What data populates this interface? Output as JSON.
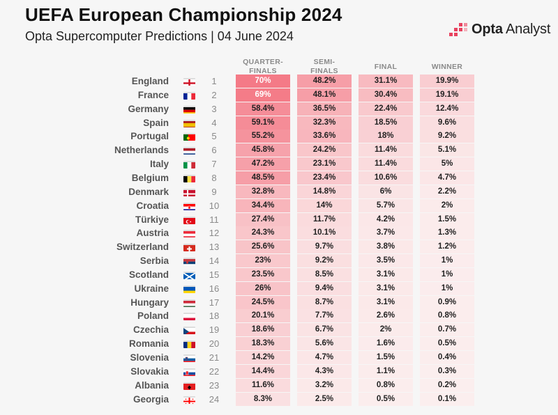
{
  "header": {
    "title": "UEFA European Championship 2024",
    "subtitle": "Opta Supercomputer Predictions | 04 June 2024",
    "brand_bold": "Opta",
    "brand_light": "Analyst"
  },
  "colors": {
    "background": "#f6f6f6",
    "accent": "#e8425f",
    "cell_max": "#f47a87",
    "cell_min": "#fbeeee"
  },
  "chart_data": {
    "type": "table",
    "title": "UEFA European Championship 2024",
    "subtitle": "Opta Supercomputer Predictions | 04 June 2024",
    "columns": [
      "QUARTER-\nFINALS",
      "SEMI-\nFINALS",
      "FINAL",
      "WINNER"
    ],
    "rows": [
      {
        "country": "England",
        "flag": "england-flag-icon",
        "rank": "1",
        "values": [
          "70%",
          "48.2%",
          "31.1%",
          "19.9%"
        ]
      },
      {
        "country": "France",
        "flag": "france-flag-icon",
        "rank": "2",
        "values": [
          "69%",
          "48.1%",
          "30.4%",
          "19.1%"
        ]
      },
      {
        "country": "Germany",
        "flag": "germany-flag-icon",
        "rank": "3",
        "values": [
          "58.4%",
          "36.5%",
          "22.4%",
          "12.4%"
        ]
      },
      {
        "country": "Spain",
        "flag": "spain-flag-icon",
        "rank": "4",
        "values": [
          "59.1%",
          "32.3%",
          "18.5%",
          "9.6%"
        ]
      },
      {
        "country": "Portugal",
        "flag": "portugal-flag-icon",
        "rank": "5",
        "values": [
          "55.2%",
          "33.6%",
          "18%",
          "9.2%"
        ]
      },
      {
        "country": "Netherlands",
        "flag": "netherlands-flag-icon",
        "rank": "6",
        "values": [
          "45.8%",
          "24.2%",
          "11.4%",
          "5.1%"
        ]
      },
      {
        "country": "Italy",
        "flag": "italy-flag-icon",
        "rank": "7",
        "values": [
          "47.2%",
          "23.1%",
          "11.4%",
          "5%"
        ]
      },
      {
        "country": "Belgium",
        "flag": "belgium-flag-icon",
        "rank": "8",
        "values": [
          "48.5%",
          "23.4%",
          "10.6%",
          "4.7%"
        ]
      },
      {
        "country": "Denmark",
        "flag": "denmark-flag-icon",
        "rank": "9",
        "values": [
          "32.8%",
          "14.8%",
          "6%",
          "2.2%"
        ]
      },
      {
        "country": "Croatia",
        "flag": "croatia-flag-icon",
        "rank": "10",
        "values": [
          "34.4%",
          "14%",
          "5.7%",
          "2%"
        ]
      },
      {
        "country": "Türkiye",
        "flag": "turkiye-flag-icon",
        "rank": "11",
        "values": [
          "27.4%",
          "11.7%",
          "4.2%",
          "1.5%"
        ]
      },
      {
        "country": "Austria",
        "flag": "austria-flag-icon",
        "rank": "12",
        "values": [
          "24.3%",
          "10.1%",
          "3.7%",
          "1.3%"
        ]
      },
      {
        "country": "Switzerland",
        "flag": "switzerland-flag-icon",
        "rank": "13",
        "values": [
          "25.6%",
          "9.7%",
          "3.8%",
          "1.2%"
        ]
      },
      {
        "country": "Serbia",
        "flag": "serbia-flag-icon",
        "rank": "14",
        "values": [
          "23%",
          "9.2%",
          "3.5%",
          "1%"
        ]
      },
      {
        "country": "Scotland",
        "flag": "scotland-flag-icon",
        "rank": "15",
        "values": [
          "23.5%",
          "8.5%",
          "3.1%",
          "1%"
        ]
      },
      {
        "country": "Ukraine",
        "flag": "ukraine-flag-icon",
        "rank": "16",
        "values": [
          "26%",
          "9.4%",
          "3.1%",
          "1%"
        ]
      },
      {
        "country": "Hungary",
        "flag": "hungary-flag-icon",
        "rank": "17",
        "values": [
          "24.5%",
          "8.7%",
          "3.1%",
          "0.9%"
        ]
      },
      {
        "country": "Poland",
        "flag": "poland-flag-icon",
        "rank": "18",
        "values": [
          "20.1%",
          "7.7%",
          "2.6%",
          "0.8%"
        ]
      },
      {
        "country": "Czechia",
        "flag": "czechia-flag-icon",
        "rank": "19",
        "values": [
          "18.6%",
          "6.7%",
          "2%",
          "0.7%"
        ]
      },
      {
        "country": "Romania",
        "flag": "romania-flag-icon",
        "rank": "20",
        "values": [
          "18.3%",
          "5.6%",
          "1.6%",
          "0.5%"
        ]
      },
      {
        "country": "Slovenia",
        "flag": "slovenia-flag-icon",
        "rank": "21",
        "values": [
          "14.2%",
          "4.7%",
          "1.5%",
          "0.4%"
        ]
      },
      {
        "country": "Slovakia",
        "flag": "slovakia-flag-icon",
        "rank": "22",
        "values": [
          "14.4%",
          "4.3%",
          "1.1%",
          "0.3%"
        ]
      },
      {
        "country": "Albania",
        "flag": "albania-flag-icon",
        "rank": "23",
        "values": [
          "11.6%",
          "3.2%",
          "0.8%",
          "0.2%"
        ]
      },
      {
        "country": "Georgia",
        "flag": "georgia-flag-icon",
        "rank": "24",
        "values": [
          "8.3%",
          "2.5%",
          "0.5%",
          "0.1%"
        ]
      }
    ]
  }
}
